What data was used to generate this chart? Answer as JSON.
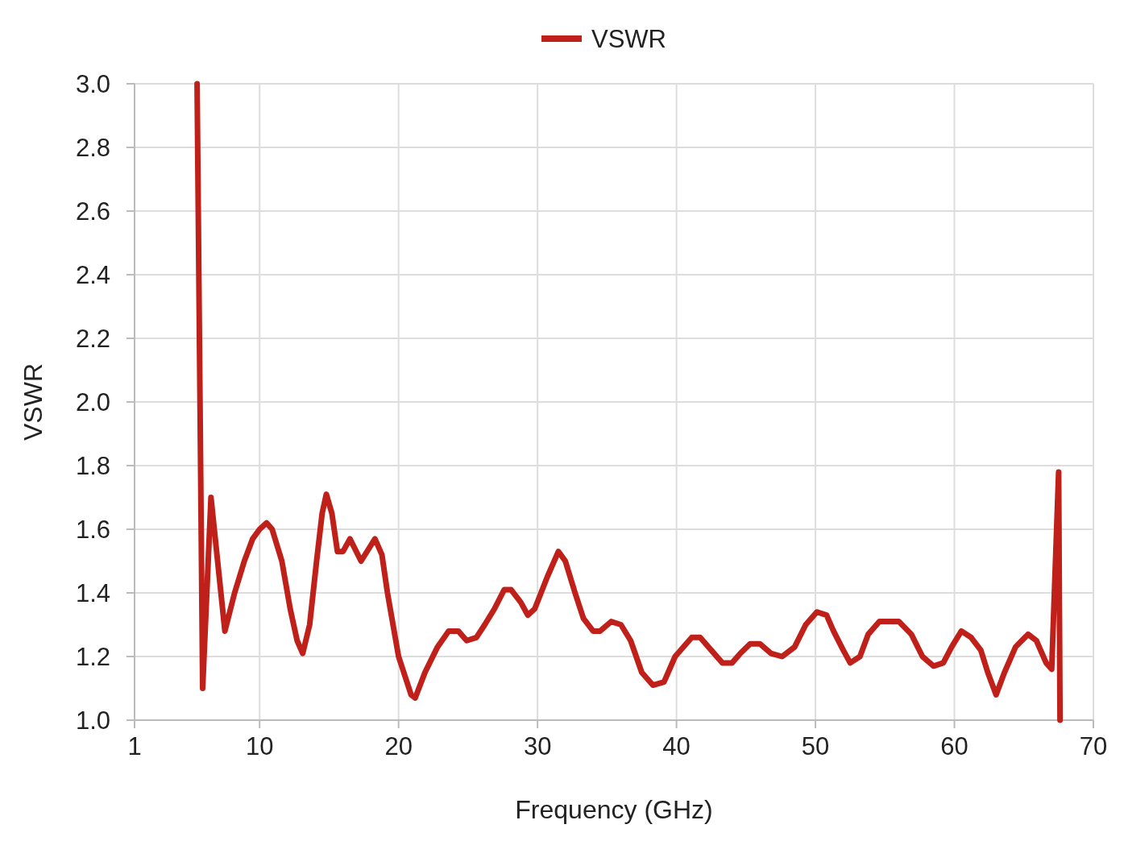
{
  "chart_data": {
    "type": "line",
    "xlabel": "Frequency (GHz)",
    "ylabel": "VSWR",
    "xlim": [
      1,
      70
    ],
    "ylim": [
      1,
      3
    ],
    "xticks": [
      1,
      10,
      20,
      30,
      40,
      50,
      60,
      70
    ],
    "yticks": [
      {
        "value": 1,
        "label": "1.0"
      },
      {
        "value": 1.2,
        "label": "1.2"
      },
      {
        "value": 1.4,
        "label": "1.4"
      },
      {
        "value": 1.6,
        "label": "1.6"
      },
      {
        "value": 1.8,
        "label": "1.8"
      },
      {
        "value": 2,
        "label": "2.0"
      },
      {
        "value": 2.2,
        "label": "2.2"
      },
      {
        "value": 2.4,
        "label": "2.4"
      },
      {
        "value": 2.6,
        "label": "2.6"
      },
      {
        "value": 2.8,
        "label": "2.8"
      },
      {
        "value": 3,
        "label": "3.0"
      }
    ],
    "grid": true,
    "legend": "top",
    "line_style": "solid",
    "x": [
      5.5,
      5.9,
      6.5,
      7.5,
      8.2,
      8.9,
      9.5,
      10,
      10.5,
      10.9,
      11.6,
      12.2,
      12.7,
      13.1,
      13.6,
      14.1,
      14.5,
      14.8,
      15.2,
      15.6,
      16,
      16.5,
      17.3,
      18.3,
      18.8,
      19.2,
      20,
      20.9,
      21.2,
      21.9,
      22.8,
      23.6,
      24.3,
      24.9,
      25.6,
      26.2,
      26.9,
      27.6,
      28.1,
      28.8,
      29.3,
      29.8,
      30.7,
      31.5,
      32,
      32.7,
      33.3,
      34,
      34.5,
      35.3,
      36,
      36.7,
      37.5,
      38.3,
      39.1,
      39.9,
      41.1,
      41.7,
      42.5,
      43.3,
      44,
      44.6,
      45.3,
      46,
      46.8,
      47.6,
      48.5,
      49.3,
      50.1,
      50.8,
      51.3,
      52,
      52.5,
      53.2,
      53.8,
      54.6,
      56,
      56.9,
      57.7,
      58.5,
      59.2,
      59.8,
      60.5,
      61.2,
      61.9,
      62.4,
      63,
      63.6,
      64.4,
      65.3,
      65.9,
      66.6,
      67,
      67.5,
      67.6
    ],
    "series": [
      {
        "name": "VSWR",
        "color": "#c0201a",
        "values": [
          3,
          1.1,
          1.7,
          1.28,
          1.4,
          1.5,
          1.57,
          1.6,
          1.62,
          1.6,
          1.5,
          1.35,
          1.25,
          1.21,
          1.3,
          1.5,
          1.65,
          1.71,
          1.65,
          1.53,
          1.53,
          1.57,
          1.5,
          1.57,
          1.52,
          1.4,
          1.2,
          1.08,
          1.07,
          1.15,
          1.23,
          1.28,
          1.28,
          1.25,
          1.26,
          1.3,
          1.35,
          1.41,
          1.41,
          1.37,
          1.33,
          1.35,
          1.45,
          1.53,
          1.5,
          1.4,
          1.32,
          1.28,
          1.28,
          1.31,
          1.3,
          1.25,
          1.15,
          1.11,
          1.12,
          1.2,
          1.26,
          1.26,
          1.22,
          1.18,
          1.18,
          1.21,
          1.24,
          1.24,
          1.21,
          1.2,
          1.23,
          1.3,
          1.34,
          1.33,
          1.28,
          1.22,
          1.18,
          1.2,
          1.27,
          1.31,
          1.31,
          1.27,
          1.2,
          1.17,
          1.18,
          1.23,
          1.28,
          1.26,
          1.22,
          1.15,
          1.08,
          1.15,
          1.23,
          1.27,
          1.25,
          1.18,
          1.16,
          1.78,
          1
        ]
      }
    ]
  }
}
